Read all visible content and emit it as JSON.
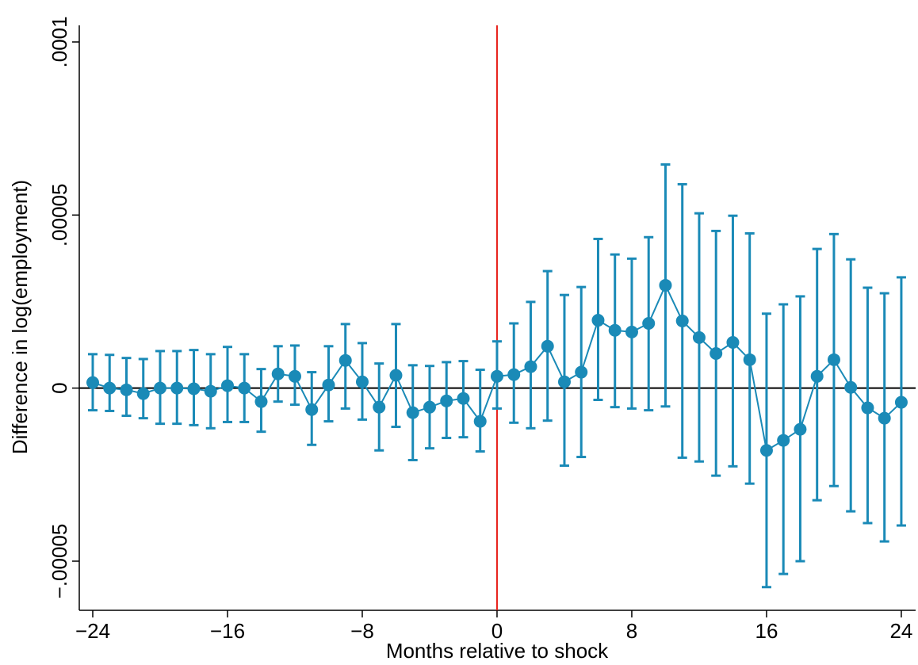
{
  "chart_data": {
    "type": "errorbar-line",
    "x_label": "Months relative to shock",
    "y_label": "Difference in log(employment)",
    "xlim": [
      -24.8,
      24.85
    ],
    "ylim": [
      -6.42e-05,
      0.0001048
    ],
    "xticks": [
      {
        "value": -24,
        "label": "−24"
      },
      {
        "value": -16,
        "label": "−16"
      },
      {
        "value": -8,
        "label": "−8"
      },
      0,
      8,
      16,
      24
    ],
    "yticks": [
      {
        "value": -5e-05,
        "label": "−.00005"
      },
      0,
      {
        "value": 5e-05,
        "label": ".00005"
      },
      {
        "value": 0.0001,
        "label": ".0001"
      }
    ],
    "hline": {
      "value": 0,
      "color": "#000000"
    },
    "vline": {
      "value": 0,
      "color": "#e8211b"
    },
    "series": [
      {
        "color": "#1a8ab7",
        "x": [
          -24,
          -23,
          -22,
          -21,
          -20,
          -19,
          -18,
          -17,
          -16,
          -15,
          -14,
          -13,
          -12,
          -11,
          -10,
          -9,
          -8,
          -7,
          -6,
          -5,
          -4,
          -3,
          -2,
          -1,
          0,
          1,
          2,
          3,
          4,
          5,
          6,
          7,
          8,
          9,
          10,
          11,
          12,
          13,
          14,
          15,
          16,
          17,
          18,
          19,
          20,
          21,
          22,
          23,
          24
        ],
        "values": [
          1.6e-06,
          0,
          -5e-07,
          -1.6e-06,
          0,
          0,
          -2e-07,
          -9e-07,
          7e-07,
          0,
          -3.9e-06,
          4.1e-06,
          3.4e-06,
          -6.2e-06,
          9e-07,
          8e-06,
          1.8e-06,
          -5.5e-06,
          3.7e-06,
          -7.1e-06,
          -5.5e-06,
          -3.7e-06,
          -3e-06,
          -9.6e-06,
          3.4e-06,
          3.9e-06,
          6.2e-06,
          1.21e-05,
          1.8e-06,
          4.6e-06,
          1.96e-05,
          1.67e-05,
          1.62e-05,
          1.87e-05,
          2.97e-05,
          1.94e-05,
          1.46e-05,
          1e-05,
          1.32e-05,
          8.2e-06,
          -1.8e-05,
          -1.51e-05,
          -1.19e-05,
          3.4e-06,
          8.2e-06,
          2e-07,
          -5.7e-06,
          -8.7e-06,
          -4.1e-06
        ],
        "lower": [
          -6.4e-06,
          -6.6e-06,
          -8e-06,
          -8.7e-06,
          -1.03e-05,
          -1.03e-05,
          -1.07e-05,
          -1.16e-05,
          -9.8e-06,
          -9.8e-06,
          -1.26e-05,
          -3.9e-06,
          -4.8e-06,
          -1.64e-05,
          -9.6e-06,
          -5.9e-06,
          -9.1e-06,
          -1.8e-05,
          -1.12e-05,
          -2.08e-05,
          -1.74e-05,
          -1.44e-05,
          -1.42e-05,
          -1.83e-05,
          -5.9e-06,
          -1e-05,
          -1.16e-05,
          -9.4e-06,
          -2.24e-05,
          -1.99e-05,
          -3.4e-06,
          -5.5e-06,
          -5.9e-06,
          -6.4e-06,
          -5.3e-06,
          -2.01e-05,
          -2.12e-05,
          -2.53e-05,
          -2.26e-05,
          -2.76e-05,
          -5.75e-05,
          -5.37e-05,
          -5e-05,
          -3.24e-05,
          -2.83e-05,
          -3.56e-05,
          -3.9e-05,
          -4.43e-05,
          -3.97e-05
        ],
        "upper": [
          9.8e-06,
          9.6e-06,
          8.7e-06,
          8.4e-06,
          1.07e-05,
          1.07e-05,
          1.1e-05,
          9.8e-06,
          1.19e-05,
          9.8e-06,
          5.5e-06,
          1.21e-05,
          1.23e-05,
          4.6e-06,
          1.21e-05,
          1.85e-05,
          1.3e-05,
          7.1e-06,
          1.85e-05,
          6.6e-06,
          6.4e-06,
          7.5e-06,
          7.8e-06,
          5.3e-06,
          1.35e-05,
          1.87e-05,
          2.49e-05,
          3.38e-05,
          2.69e-05,
          2.92e-05,
          4.31e-05,
          3.86e-05,
          3.74e-05,
          4.36e-05,
          6.46e-05,
          5.89e-05,
          5.05e-05,
          4.54e-05,
          4.98e-05,
          4.47e-05,
          2.15e-05,
          2.42e-05,
          2.65e-05,
          4.02e-05,
          4.45e-05,
          3.72e-05,
          2.9e-05,
          2.74e-05,
          3.2e-05
        ]
      }
    ]
  }
}
